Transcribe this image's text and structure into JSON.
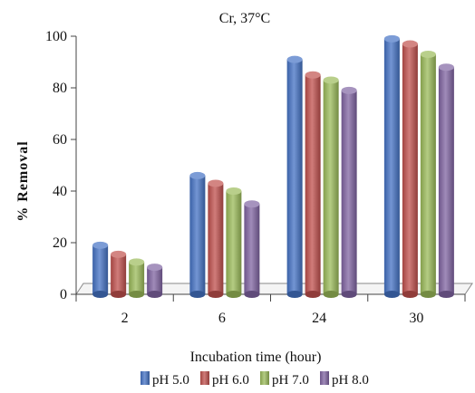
{
  "chart_data": {
    "type": "bar",
    "title": "Cr, 37°C",
    "xlabel": "Incubation time (hour)",
    "ylabel": "% Removal",
    "categories": [
      "2",
      "6",
      "24",
      "30"
    ],
    "ylim": [
      0,
      100
    ],
    "yticks": [
      0,
      20,
      40,
      60,
      80,
      100
    ],
    "grid": false,
    "legend_position": "bottom",
    "series": [
      {
        "name": "pH 5.0",
        "color": "#4472C4",
        "values": [
          19,
          46,
          91,
          99
        ]
      },
      {
        "name": "pH 6.0",
        "color": "#C0504D",
        "values": [
          15.5,
          43,
          85,
          97
        ]
      },
      {
        "name": "pH 7.0",
        "color": "#9BBB59",
        "values": [
          12.5,
          40,
          83,
          93
        ]
      },
      {
        "name": "pH 8.0",
        "color": "#8064A2",
        "values": [
          10.5,
          35,
          79,
          88
        ]
      }
    ]
  }
}
